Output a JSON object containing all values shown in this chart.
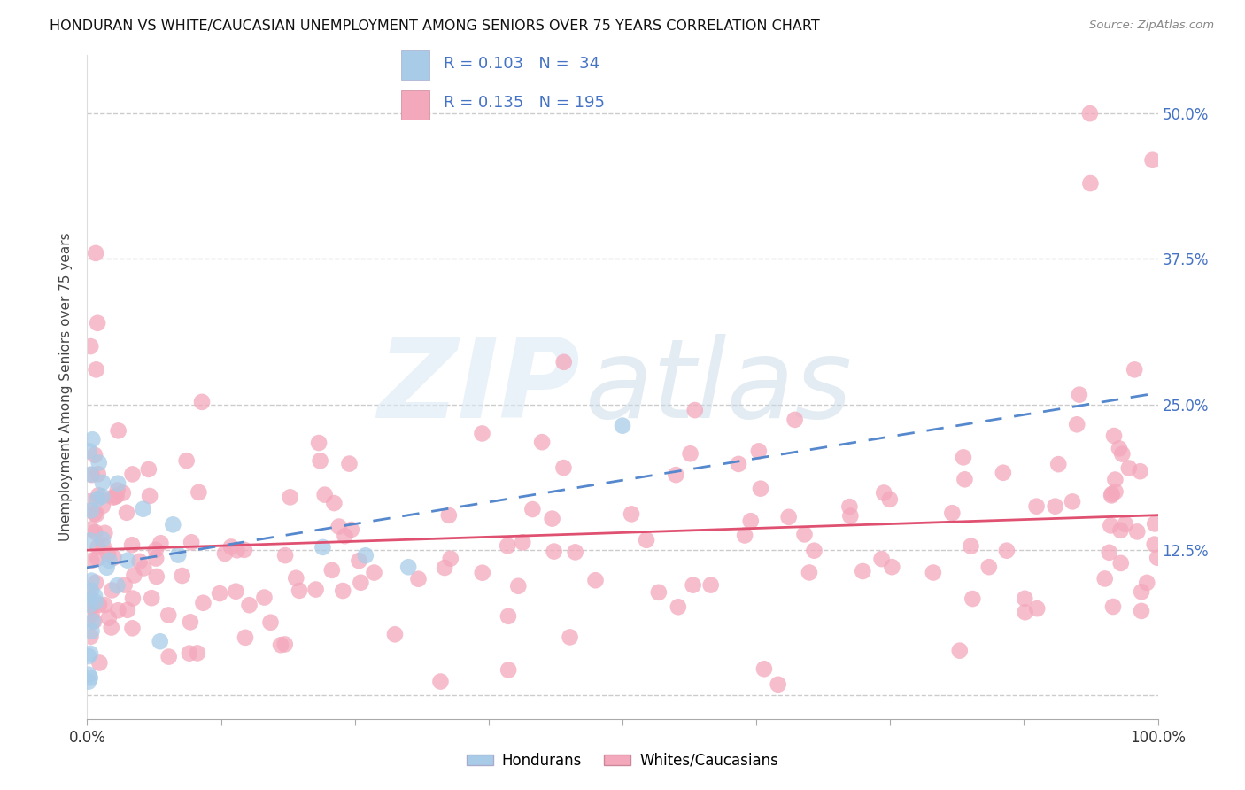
{
  "title": "HONDURAN VS WHITE/CAUCASIAN UNEMPLOYMENT AMONG SENIORS OVER 75 YEARS CORRELATION CHART",
  "source": "Source: ZipAtlas.com",
  "ylabel": "Unemployment Among Seniors over 75 years",
  "xlim": [
    0,
    1.0
  ],
  "ylim": [
    -0.02,
    0.55
  ],
  "ytick_positions": [
    0.0,
    0.125,
    0.25,
    0.375,
    0.5
  ],
  "right_yticklabels": [
    "",
    "12.5%",
    "25.0%",
    "37.5%",
    "50.0%"
  ],
  "xtick_positions": [
    0.0,
    0.125,
    0.25,
    0.375,
    0.5,
    0.625,
    0.75,
    0.875,
    1.0
  ],
  "left_xticklabel": "0.0%",
  "right_xticklabel": "100.0%",
  "grid_color": "#cccccc",
  "background_color": "#ffffff",
  "honduran_color": "#a8cce8",
  "caucasian_color": "#f4a8bc",
  "honduran_R": 0.103,
  "honduran_N": 34,
  "caucasian_R": 0.135,
  "caucasian_N": 195,
  "legend_label_honduran": "Hondurans",
  "legend_label_caucasian": "Whites/Caucasians",
  "legend_box_honduran_color": "#a8cce8",
  "legend_box_caucasian_color": "#f4a8bc",
  "line_honduran_color": "#5588cc",
  "line_caucasian_color": "#e05070",
  "right_tick_color": "#4472c4",
  "watermark_zip_color": "#c8ddf0",
  "watermark_atlas_color": "#b0c8e0"
}
